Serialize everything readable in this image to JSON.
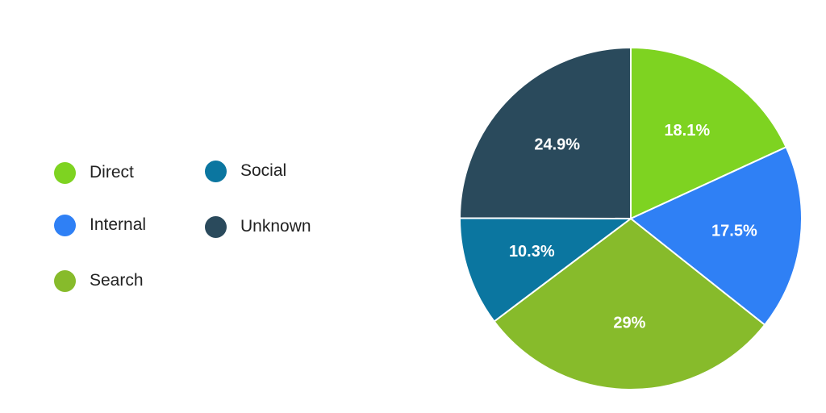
{
  "chart_data": {
    "type": "pie",
    "legend_position": "left",
    "categories": [
      "Direct",
      "Internal",
      "Search",
      "Social",
      "Unknown"
    ],
    "values": [
      18.1,
      17.5,
      29,
      10.3,
      24.9
    ],
    "labels": [
      "18.1%",
      "17.5%",
      "29%",
      "10.3%",
      "24.9%"
    ],
    "colors": [
      "#7ED321",
      "#2F80F5",
      "#87BB2B",
      "#0B76A0",
      "#2A4A5C"
    ],
    "start_angle_deg": 0,
    "direction": "clockwise"
  }
}
